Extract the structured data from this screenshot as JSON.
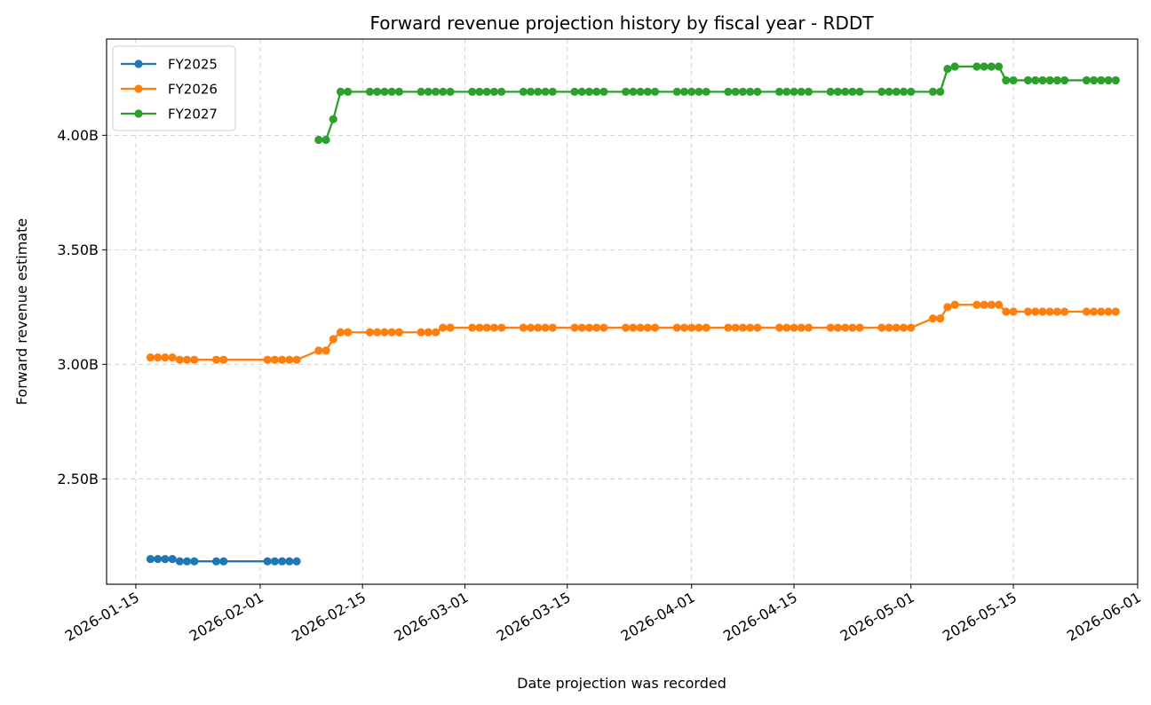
{
  "chart_data": {
    "type": "line",
    "title": "Forward revenue projection history by fiscal year - RDDT",
    "xlabel": "Date projection was recorded",
    "ylabel": "Forward revenue estimate",
    "x_ticks": [
      "2026-01-15",
      "2026-02-01",
      "2026-02-15",
      "2026-03-01",
      "2026-03-15",
      "2026-04-01",
      "2026-04-15",
      "2026-05-01",
      "2026-05-15",
      "2026-06-01"
    ],
    "y_ticks": [
      {
        "value": 2.5,
        "label": "2.50B"
      },
      {
        "value": 3.0,
        "label": "3.00B"
      },
      {
        "value": 3.5,
        "label": "3.50B"
      },
      {
        "value": 4.0,
        "label": "4.00B"
      }
    ],
    "xlim": [
      "2026-01-11",
      "2026-06-01"
    ],
    "ylim": [
      2.04,
      4.42
    ],
    "y_unit": "billions",
    "grid": true,
    "legend_position": "top-left",
    "series": [
      {
        "name": "FY2025",
        "color": "#1f77b4",
        "points": [
          [
            "2026-01-17",
            2.15
          ],
          [
            "2026-01-18",
            2.15
          ],
          [
            "2026-01-19",
            2.15
          ],
          [
            "2026-01-20",
            2.15
          ],
          [
            "2026-01-21",
            2.14
          ],
          [
            "2026-01-22",
            2.14
          ],
          [
            "2026-01-23",
            2.14
          ],
          [
            "2026-01-26",
            2.14
          ],
          [
            "2026-01-27",
            2.14
          ],
          [
            "2026-02-02",
            2.14
          ],
          [
            "2026-02-03",
            2.14
          ],
          [
            "2026-02-04",
            2.14
          ],
          [
            "2026-02-05",
            2.14
          ],
          [
            "2026-02-06",
            2.14
          ]
        ]
      },
      {
        "name": "FY2026",
        "color": "#ff7f0e",
        "points": [
          [
            "2026-01-17",
            3.03
          ],
          [
            "2026-01-18",
            3.03
          ],
          [
            "2026-01-19",
            3.03
          ],
          [
            "2026-01-20",
            3.03
          ],
          [
            "2026-01-21",
            3.02
          ],
          [
            "2026-01-22",
            3.02
          ],
          [
            "2026-01-23",
            3.02
          ],
          [
            "2026-01-26",
            3.02
          ],
          [
            "2026-01-27",
            3.02
          ],
          [
            "2026-02-02",
            3.02
          ],
          [
            "2026-02-03",
            3.02
          ],
          [
            "2026-02-04",
            3.02
          ],
          [
            "2026-02-05",
            3.02
          ],
          [
            "2026-02-06",
            3.02
          ],
          [
            "2026-02-09",
            3.06
          ],
          [
            "2026-02-10",
            3.06
          ],
          [
            "2026-02-11",
            3.11
          ],
          [
            "2026-02-12",
            3.14
          ],
          [
            "2026-02-13",
            3.14
          ],
          [
            "2026-02-16",
            3.14
          ],
          [
            "2026-02-17",
            3.14
          ],
          [
            "2026-02-18",
            3.14
          ],
          [
            "2026-02-19",
            3.14
          ],
          [
            "2026-02-20",
            3.14
          ],
          [
            "2026-02-23",
            3.14
          ],
          [
            "2026-02-24",
            3.14
          ],
          [
            "2026-02-25",
            3.14
          ],
          [
            "2026-02-26",
            3.16
          ],
          [
            "2026-02-27",
            3.16
          ],
          [
            "2026-03-02",
            3.16
          ],
          [
            "2026-03-03",
            3.16
          ],
          [
            "2026-03-04",
            3.16
          ],
          [
            "2026-03-05",
            3.16
          ],
          [
            "2026-03-06",
            3.16
          ],
          [
            "2026-03-09",
            3.16
          ],
          [
            "2026-03-10",
            3.16
          ],
          [
            "2026-03-11",
            3.16
          ],
          [
            "2026-03-12",
            3.16
          ],
          [
            "2026-03-13",
            3.16
          ],
          [
            "2026-03-16",
            3.16
          ],
          [
            "2026-03-17",
            3.16
          ],
          [
            "2026-03-18",
            3.16
          ],
          [
            "2026-03-19",
            3.16
          ],
          [
            "2026-03-20",
            3.16
          ],
          [
            "2026-03-23",
            3.16
          ],
          [
            "2026-03-24",
            3.16
          ],
          [
            "2026-03-25",
            3.16
          ],
          [
            "2026-03-26",
            3.16
          ],
          [
            "2026-03-27",
            3.16
          ],
          [
            "2026-03-30",
            3.16
          ],
          [
            "2026-03-31",
            3.16
          ],
          [
            "2026-04-01",
            3.16
          ],
          [
            "2026-04-02",
            3.16
          ],
          [
            "2026-04-03",
            3.16
          ],
          [
            "2026-04-06",
            3.16
          ],
          [
            "2026-04-07",
            3.16
          ],
          [
            "2026-04-08",
            3.16
          ],
          [
            "2026-04-09",
            3.16
          ],
          [
            "2026-04-10",
            3.16
          ],
          [
            "2026-04-13",
            3.16
          ],
          [
            "2026-04-14",
            3.16
          ],
          [
            "2026-04-15",
            3.16
          ],
          [
            "2026-04-16",
            3.16
          ],
          [
            "2026-04-17",
            3.16
          ],
          [
            "2026-04-20",
            3.16
          ],
          [
            "2026-04-21",
            3.16
          ],
          [
            "2026-04-22",
            3.16
          ],
          [
            "2026-04-23",
            3.16
          ],
          [
            "2026-04-24",
            3.16
          ],
          [
            "2026-04-27",
            3.16
          ],
          [
            "2026-04-28",
            3.16
          ],
          [
            "2026-04-29",
            3.16
          ],
          [
            "2026-04-30",
            3.16
          ],
          [
            "2026-05-01",
            3.16
          ],
          [
            "2026-05-04",
            3.2
          ],
          [
            "2026-05-05",
            3.2
          ],
          [
            "2026-05-06",
            3.25
          ],
          [
            "2026-05-07",
            3.26
          ],
          [
            "2026-05-10",
            3.26
          ],
          [
            "2026-05-11",
            3.26
          ],
          [
            "2026-05-12",
            3.26
          ],
          [
            "2026-05-13",
            3.26
          ],
          [
            "2026-05-14",
            3.23
          ],
          [
            "2026-05-15",
            3.23
          ],
          [
            "2026-05-17",
            3.23
          ],
          [
            "2026-05-18",
            3.23
          ],
          [
            "2026-05-19",
            3.23
          ],
          [
            "2026-05-20",
            3.23
          ],
          [
            "2026-05-21",
            3.23
          ],
          [
            "2026-05-22",
            3.23
          ],
          [
            "2026-05-25",
            3.23
          ],
          [
            "2026-05-26",
            3.23
          ],
          [
            "2026-05-27",
            3.23
          ],
          [
            "2026-05-28",
            3.23
          ],
          [
            "2026-05-29",
            3.23
          ]
        ]
      },
      {
        "name": "FY2027",
        "color": "#2ca02c",
        "points": [
          [
            "2026-02-09",
            3.98
          ],
          [
            "2026-02-10",
            3.98
          ],
          [
            "2026-02-11",
            4.07
          ],
          [
            "2026-02-12",
            4.19
          ],
          [
            "2026-02-13",
            4.19
          ],
          [
            "2026-02-16",
            4.19
          ],
          [
            "2026-02-17",
            4.19
          ],
          [
            "2026-02-18",
            4.19
          ],
          [
            "2026-02-19",
            4.19
          ],
          [
            "2026-02-20",
            4.19
          ],
          [
            "2026-02-23",
            4.19
          ],
          [
            "2026-02-24",
            4.19
          ],
          [
            "2026-02-25",
            4.19
          ],
          [
            "2026-02-26",
            4.19
          ],
          [
            "2026-02-27",
            4.19
          ],
          [
            "2026-03-02",
            4.19
          ],
          [
            "2026-03-03",
            4.19
          ],
          [
            "2026-03-04",
            4.19
          ],
          [
            "2026-03-05",
            4.19
          ],
          [
            "2026-03-06",
            4.19
          ],
          [
            "2026-03-09",
            4.19
          ],
          [
            "2026-03-10",
            4.19
          ],
          [
            "2026-03-11",
            4.19
          ],
          [
            "2026-03-12",
            4.19
          ],
          [
            "2026-03-13",
            4.19
          ],
          [
            "2026-03-16",
            4.19
          ],
          [
            "2026-03-17",
            4.19
          ],
          [
            "2026-03-18",
            4.19
          ],
          [
            "2026-03-19",
            4.19
          ],
          [
            "2026-03-20",
            4.19
          ],
          [
            "2026-03-23",
            4.19
          ],
          [
            "2026-03-24",
            4.19
          ],
          [
            "2026-03-25",
            4.19
          ],
          [
            "2026-03-26",
            4.19
          ],
          [
            "2026-03-27",
            4.19
          ],
          [
            "2026-03-30",
            4.19
          ],
          [
            "2026-03-31",
            4.19
          ],
          [
            "2026-04-01",
            4.19
          ],
          [
            "2026-04-02",
            4.19
          ],
          [
            "2026-04-03",
            4.19
          ],
          [
            "2026-04-06",
            4.19
          ],
          [
            "2026-04-07",
            4.19
          ],
          [
            "2026-04-08",
            4.19
          ],
          [
            "2026-04-09",
            4.19
          ],
          [
            "2026-04-10",
            4.19
          ],
          [
            "2026-04-13",
            4.19
          ],
          [
            "2026-04-14",
            4.19
          ],
          [
            "2026-04-15",
            4.19
          ],
          [
            "2026-04-16",
            4.19
          ],
          [
            "2026-04-17",
            4.19
          ],
          [
            "2026-04-20",
            4.19
          ],
          [
            "2026-04-21",
            4.19
          ],
          [
            "2026-04-22",
            4.19
          ],
          [
            "2026-04-23",
            4.19
          ],
          [
            "2026-04-24",
            4.19
          ],
          [
            "2026-04-27",
            4.19
          ],
          [
            "2026-04-28",
            4.19
          ],
          [
            "2026-04-29",
            4.19
          ],
          [
            "2026-04-30",
            4.19
          ],
          [
            "2026-05-01",
            4.19
          ],
          [
            "2026-05-04",
            4.19
          ],
          [
            "2026-05-05",
            4.19
          ],
          [
            "2026-05-06",
            4.29
          ],
          [
            "2026-05-07",
            4.3
          ],
          [
            "2026-05-10",
            4.3
          ],
          [
            "2026-05-11",
            4.3
          ],
          [
            "2026-05-12",
            4.3
          ],
          [
            "2026-05-13",
            4.3
          ],
          [
            "2026-05-14",
            4.24
          ],
          [
            "2026-05-15",
            4.24
          ],
          [
            "2026-05-17",
            4.24
          ],
          [
            "2026-05-18",
            4.24
          ],
          [
            "2026-05-19",
            4.24
          ],
          [
            "2026-05-20",
            4.24
          ],
          [
            "2026-05-21",
            4.24
          ],
          [
            "2026-05-22",
            4.24
          ],
          [
            "2026-05-25",
            4.24
          ],
          [
            "2026-05-26",
            4.24
          ],
          [
            "2026-05-27",
            4.24
          ],
          [
            "2026-05-28",
            4.24
          ],
          [
            "2026-05-29",
            4.24
          ]
        ]
      }
    ]
  }
}
